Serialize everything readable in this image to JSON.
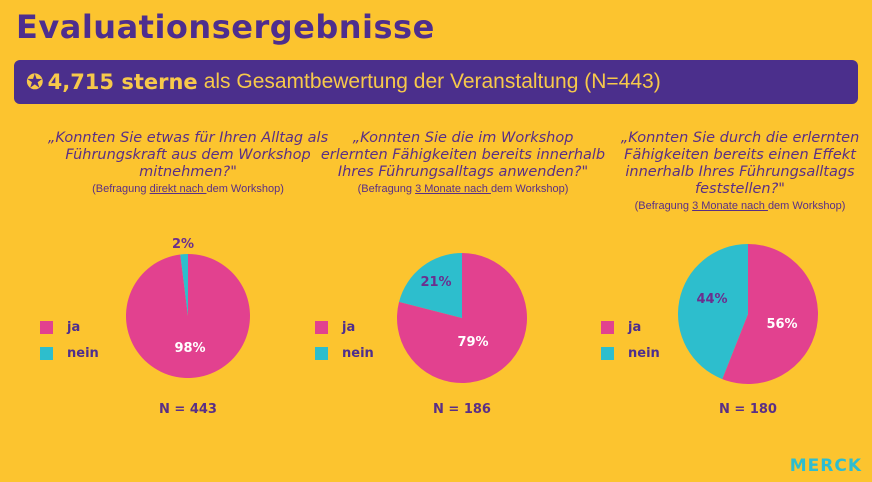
{
  "title": "Evaluationsergebnisse",
  "banner": {
    "icon": "star-circle-icon",
    "rating": "4,715 sterne",
    "text": "als Gesamtbewertung der Veranstaltung (N=443)"
  },
  "colors": {
    "ja": "#E2418F",
    "nein": "#2DBECD",
    "background": "#FCC42F",
    "banner": "#4B2F8C"
  },
  "legend": {
    "ja": "ja",
    "nein": "nein"
  },
  "logo": "MERCK",
  "chart_data": [
    {
      "type": "pie",
      "question": "„Konnten Sie etwas für Ihren Alltag als Führungskraft aus dem Workshop mitnehmen?\"",
      "note_pre": "(Befragung ",
      "note_u": "direkt nach ",
      "note_post": "dem Workshop)",
      "categories": [
        "ja",
        "nein"
      ],
      "values": [
        98,
        2
      ],
      "labels": [
        "98%",
        "2%"
      ],
      "n": "N = 443"
    },
    {
      "type": "pie",
      "question": "„Konnten Sie die im Workshop erlernten Fähigkeiten bereits innerhalb Ihres Führungsalltags anwenden?\"",
      "note_pre": "(Befragung ",
      "note_u": "3 Monate nach ",
      "note_post": "dem Workshop)",
      "categories": [
        "ja",
        "nein"
      ],
      "values": [
        79,
        21
      ],
      "labels": [
        "79%",
        "21%"
      ],
      "n": "N = 186"
    },
    {
      "type": "pie",
      "question": "„Konnten Sie durch die erlernten Fähigkeiten bereits einen Effekt innerhalb Ihres Führungsalltags feststellen?\"",
      "note_pre": "(Befragung ",
      "note_u": "3 Monate nach ",
      "note_post": "dem Workshop)",
      "categories": [
        "ja",
        "nein"
      ],
      "values": [
        56,
        44
      ],
      "labels": [
        "56%",
        "44%"
      ],
      "n": "N = 180"
    }
  ]
}
